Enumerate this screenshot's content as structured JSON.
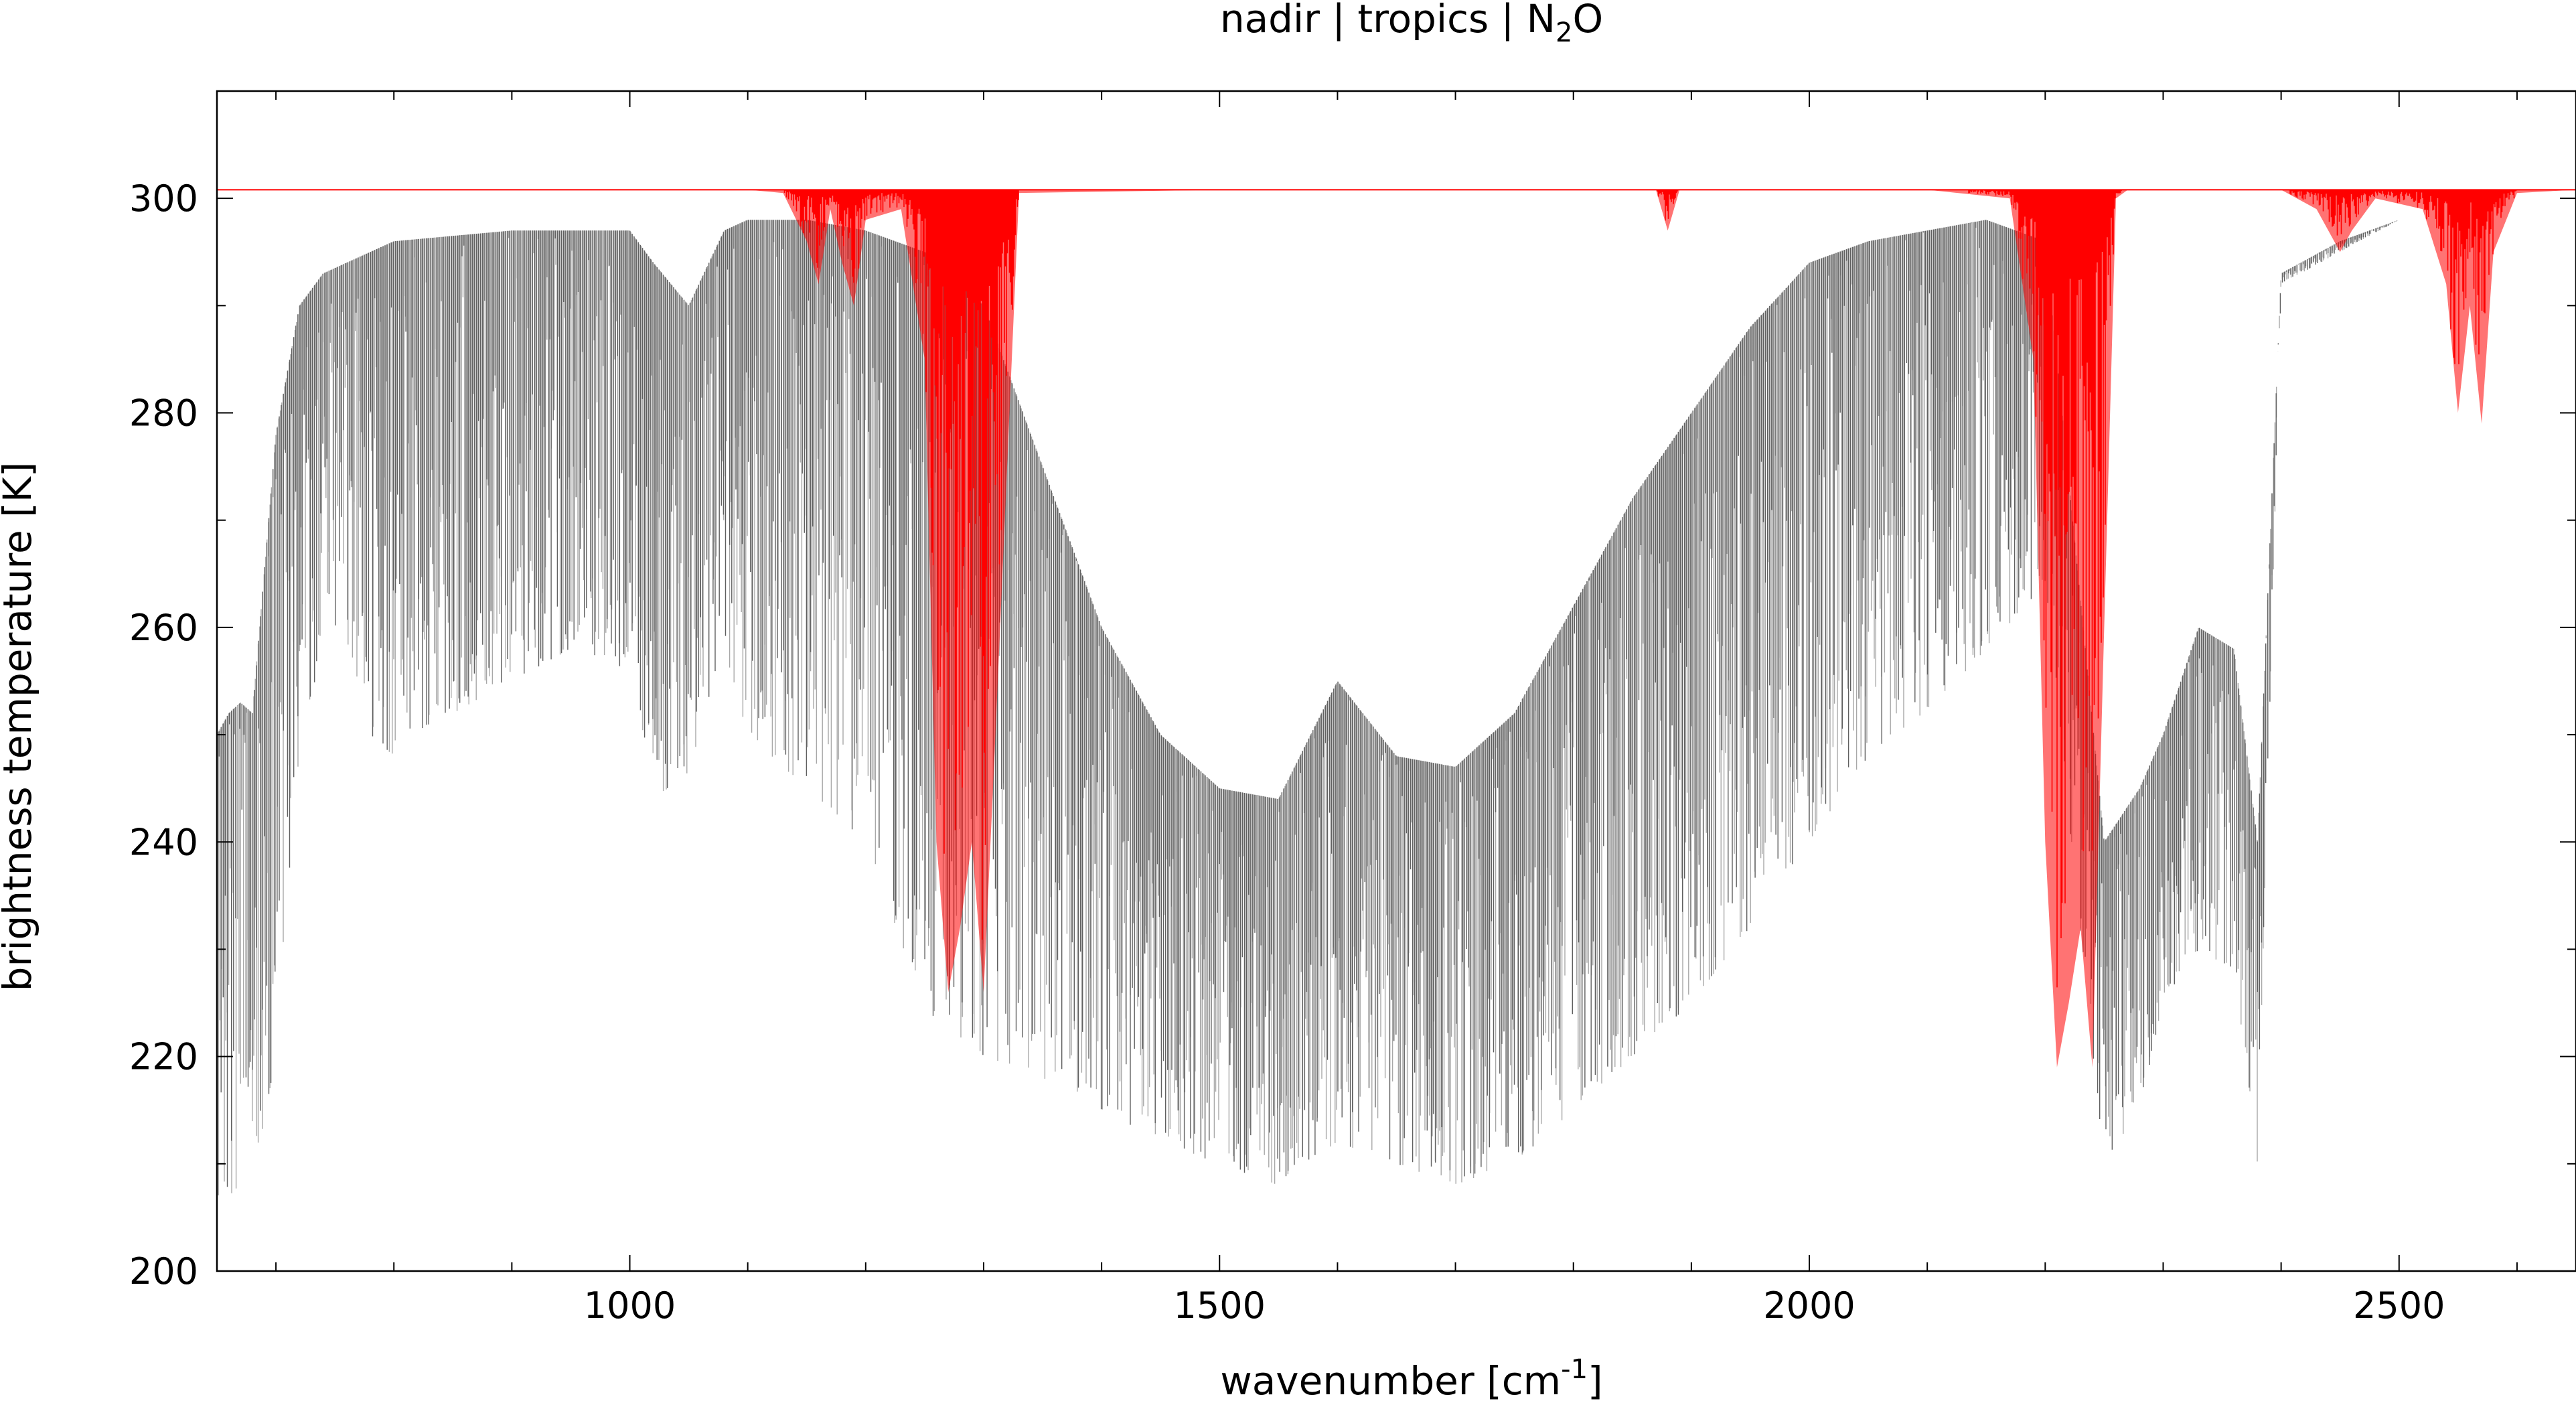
{
  "chart_data": {
    "type": "line",
    "title_parts": {
      "pre": "nadir | tropics | N",
      "sub": "2",
      "post": "O"
    },
    "title": "nadir | tropics | N2O",
    "xlabel_parts": {
      "pre": "wavenumber [cm",
      "sup": "-1",
      "post": "]"
    },
    "xlabel": "wavenumber [cm-1]",
    "ylabel": "brightness temperature [K]",
    "xlim": [
      650,
      2650
    ],
    "ylim": [
      200,
      310
    ],
    "x_ticks": [
      1000,
      1500,
      2000,
      2500
    ],
    "x_tick_labels": [
      "1000",
      "1500",
      "2000",
      "2500"
    ],
    "y_ticks": [
      200,
      220,
      240,
      260,
      280,
      300
    ],
    "y_tick_labels": [
      "200",
      "220",
      "240",
      "260",
      "280",
      "300"
    ],
    "x_minor_step": 100,
    "y_minor_step": 10,
    "grid": false,
    "legend": "none",
    "colors": {
      "n2o": "#ff0000",
      "total_dark": "#606060",
      "total_light": "#a8a8a8",
      "frame": "#000000"
    },
    "series": [
      {
        "role": "background-spectrum-upper",
        "color": "#a8a8a8",
        "x": [
          650,
          660,
          670,
          680,
          700,
          720,
          740,
          760,
          780,
          800,
          850,
          900,
          950,
          1000,
          1020,
          1050,
          1080,
          1100,
          1150,
          1200,
          1250,
          1300,
          1350,
          1400,
          1450,
          1500,
          1550,
          1600,
          1650,
          1700,
          1750,
          1800,
          1850,
          1900,
          1950,
          2000,
          2050,
          2100,
          2150,
          2200,
          2250,
          2280,
          2300,
          2330,
          2360,
          2380,
          2400,
          2450,
          2500,
          2550,
          2600,
          2650
        ],
        "values": [
          250,
          252,
          253,
          252,
          278,
          290,
          293,
          294,
          295,
          296,
          296.5,
          297,
          297,
          297,
          294,
          290,
          297,
          298,
          298,
          297,
          295,
          290,
          275,
          260,
          250,
          245,
          244,
          255,
          248,
          247,
          252,
          262,
          272,
          280,
          288,
          294,
          296,
          297,
          298,
          296,
          240,
          245,
          250,
          260,
          258,
          240,
          293,
          296,
          298,
          299.5,
          300.5,
          300.5
        ]
      },
      {
        "role": "background-spectrum-lower",
        "color": "#606060",
        "x": [
          650,
          660,
          670,
          680,
          700,
          720,
          740,
          760,
          780,
          800,
          850,
          900,
          950,
          1000,
          1020,
          1040,
          1060,
          1080,
          1100,
          1150,
          1200,
          1250,
          1300,
          1350,
          1400,
          1450,
          1500,
          1550,
          1600,
          1650,
          1700,
          1750,
          1800,
          1850,
          1900,
          1950,
          2000,
          2050,
          2100,
          2150,
          2200,
          2250,
          2280,
          2300,
          2330,
          2360,
          2380,
          2400,
          2450,
          2500,
          2550,
          2600,
          2650
        ],
        "values": [
          207,
          207,
          207,
          208,
          220,
          245,
          260,
          258,
          250,
          248,
          252,
          255,
          258,
          256,
          245,
          243,
          250,
          258,
          250,
          245,
          240,
          224,
          220,
          218,
          215,
          212,
          210,
          208,
          212,
          210,
          208,
          210,
          215,
          220,
          225,
          232,
          240,
          248,
          252,
          258,
          264,
          210,
          215,
          225,
          230,
          228,
          210,
          292,
          295,
          298,
          299.5,
          300.5,
          300.5
        ]
      },
      {
        "role": "n2o-spectrum",
        "name": "N2O",
        "color": "#ff0000",
        "x": [
          650,
          1100,
          1130,
          1150,
          1160,
          1170,
          1180,
          1190,
          1200,
          1230,
          1250,
          1260,
          1270,
          1280,
          1290,
          1300,
          1310,
          1330,
          1500,
          1870,
          1880,
          1890,
          2100,
          2170,
          2190,
          2200,
          2210,
          2220,
          2230,
          2240,
          2250,
          2260,
          2270,
          2400,
          2430,
          2450,
          2460,
          2480,
          2520,
          2540,
          2550,
          2560,
          2570,
          2580,
          2600,
          2650
        ],
        "values": [
          300.8,
          300.8,
          300.5,
          296,
          292,
          299,
          294,
          290,
          298,
          299,
          285,
          240,
          226,
          232,
          240,
          226,
          250,
          300.5,
          300.8,
          300.8,
          297,
          300.8,
          300.8,
          300,
          285,
          240,
          219,
          225,
          232,
          219,
          260,
          300,
          300.8,
          300.8,
          299,
          295,
          297,
          300,
          299,
          292,
          280,
          290,
          279,
          295,
          300.5,
          300.8
        ]
      }
    ]
  }
}
